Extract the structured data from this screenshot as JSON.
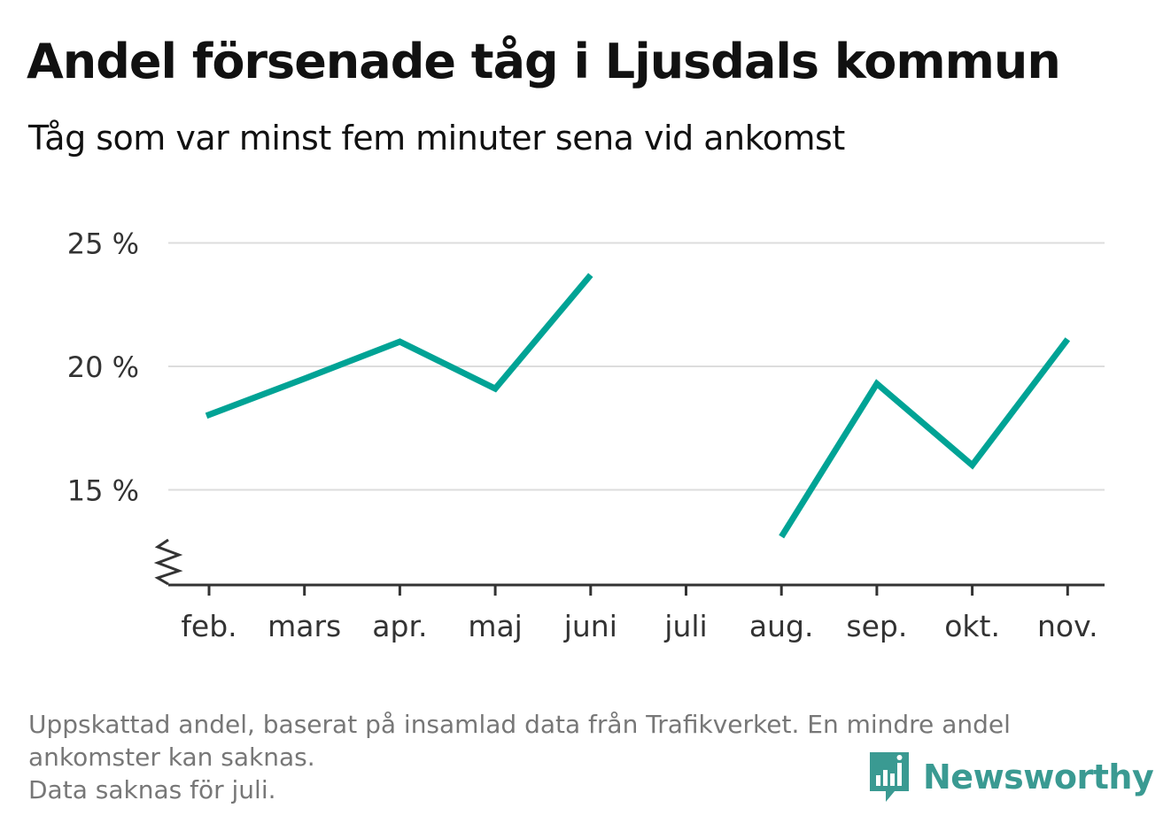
{
  "title": "Andel försenade tåg i Ljusdals kommun",
  "subtitle": "Tåg som var minst fem minuter sena vid ankomst",
  "footnote": {
    "line1": "Uppskattad andel, baserat på insamlad data från Trafikverket. En mindre andel",
    "line2": "ankomster kan saknas.",
    "line3": "Data saknas för juli."
  },
  "brand": {
    "name": "Newsworthy",
    "color": "#3a9a92"
  },
  "colors": {
    "line": "#00a395",
    "grid": "#dddddd",
    "axis": "#333333"
  },
  "chart_data": {
    "type": "line",
    "title": "Andel försenade tåg i Ljusdals kommun",
    "subtitle": "Tåg som var minst fem minuter sena vid ankomst",
    "categories": [
      "feb.",
      "mars",
      "apr.",
      "maj",
      "juni",
      "juli",
      "aug.",
      "sep.",
      "okt.",
      "nov."
    ],
    "series": [
      {
        "values": [
          18.0,
          19.5,
          21.0,
          19.1,
          23.7,
          null,
          13.1,
          19.3,
          16.0,
          21.1
        ]
      }
    ],
    "y_ticks": [
      "15 %",
      "20 %",
      "25 %"
    ],
    "ylim": [
      11.2,
      25.5
    ],
    "y_axis_break": true,
    "grid": true,
    "legend": "none"
  }
}
